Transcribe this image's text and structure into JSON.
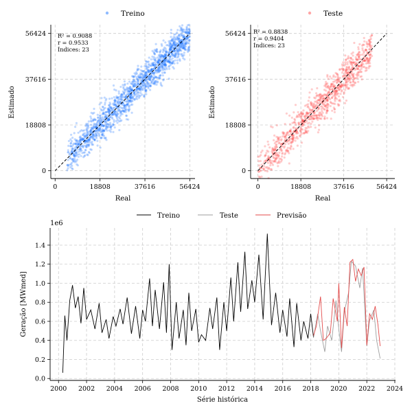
{
  "chart_data": [
    {
      "type": "scatter",
      "legend": {
        "label": "Treino",
        "placement": "top-center"
      },
      "xlabel": "Real",
      "ylabel": "Estimado",
      "xlim": [
        -1800,
        58600
      ],
      "ylim": [
        -3200,
        60000
      ],
      "ticks": [
        "0",
        "18808",
        "37616",
        "56424"
      ],
      "tick_values": [
        0,
        18808,
        37616,
        56424
      ],
      "grid": true,
      "annotation": [
        "R² = 0.9088",
        "r = 0.9533",
        "Índices: 23"
      ],
      "color": "#1f77ff",
      "cloud": {
        "x_min": 5000,
        "x_max": 56424,
        "n_points": 1600,
        "approx_slope": 1.0
      },
      "identity_line": true
    },
    {
      "type": "scatter",
      "legend": {
        "label": "Teste",
        "placement": "top-center"
      },
      "xlabel": "Real",
      "ylabel": "Estimado",
      "xlim": [
        -3200,
        60000
      ],
      "ylim": [
        -3200,
        60000
      ],
      "ticks": [
        "0",
        "18808",
        "37616",
        "56424"
      ],
      "tick_values": [
        0,
        18808,
        37616,
        56424
      ],
      "grid": true,
      "annotation": [
        "R² = 0.8838",
        "r = 0.9404",
        "Índices: 23"
      ],
      "color": "#ff4d4d",
      "cloud": {
        "x_min": 0,
        "x_max": 50000,
        "n_points": 1000,
        "approx_slope": 1.0
      },
      "identity_line": true
    },
    {
      "type": "line",
      "legend": [
        {
          "label": "Treino",
          "color": "#000000"
        },
        {
          "label": "Teste",
          "color": "#9e9e9e"
        },
        {
          "label": "Previsão",
          "color": "#e34a4a"
        }
      ],
      "xlabel": "Série histórica",
      "ylabel": "Geração [MWmed]",
      "y_offset_label": "1e6",
      "xlim": [
        1999.4,
        2024.05
      ],
      "ylim": [
        -0.02,
        1.58
      ],
      "xticks": [
        "2000",
        "2002",
        "2004",
        "2006",
        "2008",
        "2010",
        "2012",
        "2014",
        "2016",
        "2018",
        "2020",
        "2022",
        "2024"
      ],
      "xtick_values": [
        2000,
        2002,
        2004,
        2006,
        2008,
        2010,
        2012,
        2014,
        2016,
        2018,
        2020,
        2022,
        2024
      ],
      "yticks": [
        "0.0",
        "0.2",
        "0.4",
        "0.6",
        "0.8",
        "1.0",
        "1.2",
        "1.4"
      ],
      "ytick_values": [
        0,
        0.2,
        0.4,
        0.6,
        0.8,
        1.0,
        1.2,
        1.4
      ],
      "grid": true,
      "series": [
        {
          "name": "Treino",
          "color": "#000000",
          "x": [
            2000.3,
            2000.45,
            2000.6,
            2000.8,
            2001.0,
            2001.2,
            2001.4,
            2001.6,
            2001.8,
            2002.0,
            2002.3,
            2002.6,
            2002.9,
            2003.1,
            2003.4,
            2003.6,
            2003.9,
            2004.1,
            2004.4,
            2004.6,
            2004.9,
            2005.2,
            2005.5,
            2005.8,
            2006.0,
            2006.2,
            2006.5,
            2006.7,
            2006.9,
            2007.2,
            2007.5,
            2007.7,
            2007.9,
            2008.1,
            2008.4,
            2008.6,
            2008.9,
            2009.1,
            2009.3,
            2009.5,
            2009.8,
            2010.0,
            2010.2,
            2010.5,
            2010.8,
            2011.0,
            2011.3,
            2011.5,
            2011.8,
            2012.0,
            2012.3,
            2012.5,
            2012.8,
            2013.0,
            2013.3,
            2013.5,
            2013.8,
            2014.0,
            2014.3,
            2014.6,
            2014.9,
            2015.2,
            2015.5,
            2015.8,
            2016.0,
            2016.3,
            2016.5,
            2016.8,
            2017.0,
            2017.3,
            2017.5,
            2017.8,
            2018.0,
            2018.2
          ],
          "y": [
            0.06,
            0.66,
            0.4,
            0.82,
            0.98,
            0.74,
            0.86,
            0.58,
            0.95,
            0.62,
            0.72,
            0.52,
            0.79,
            0.48,
            0.62,
            0.42,
            0.65,
            0.55,
            0.73,
            0.57,
            0.85,
            0.47,
            0.76,
            0.42,
            0.72,
            0.6,
            1.05,
            0.55,
            0.93,
            0.52,
            1.01,
            0.48,
            1.2,
            0.3,
            0.8,
            0.42,
            0.72,
            0.35,
            0.9,
            0.5,
            0.73,
            0.38,
            0.46,
            0.4,
            0.74,
            0.52,
            0.85,
            0.3,
            0.8,
            0.5,
            1.06,
            0.6,
            1.22,
            0.7,
            1.33,
            0.73,
            1.03,
            0.8,
            1.3,
            0.62,
            1.52,
            0.56,
            0.9,
            0.48,
            0.72,
            0.44,
            0.84,
            0.33,
            0.79,
            0.4,
            0.6,
            0.42,
            0.68,
            0.43
          ]
        },
        {
          "name": "Teste",
          "color": "#9e9e9e",
          "x": [
            2018.2,
            2018.5,
            2018.7,
            2019.0,
            2019.2,
            2019.5,
            2019.8,
            2020.0,
            2020.2,
            2020.4,
            2020.7,
            2020.9,
            2021.2,
            2021.5,
            2021.7,
            2022.0,
            2022.2,
            2022.5,
            2022.7,
            2022.95
          ],
          "y": [
            0.43,
            0.68,
            0.5,
            0.28,
            0.55,
            0.4,
            0.82,
            0.52,
            0.28,
            0.7,
            0.9,
            1.23,
            1.18,
            0.95,
            1.16,
            0.34,
            0.61,
            0.72,
            0.4,
            0.21
          ]
        },
        {
          "name": "Previsão",
          "color": "#e34a4a",
          "x": [
            2018.2,
            2018.4,
            2018.7,
            2018.9,
            2019.1,
            2019.4,
            2019.6,
            2019.9,
            2020.0,
            2020.2,
            2020.4,
            2020.6,
            2020.8,
            2021.0,
            2021.2,
            2021.4,
            2021.6,
            2021.8,
            2022.0,
            2022.2,
            2022.4,
            2022.6,
            2022.8,
            2022.95
          ],
          "y": [
            0.45,
            0.55,
            0.86,
            0.4,
            0.42,
            0.48,
            0.84,
            0.6,
            1.0,
            0.32,
            0.75,
            0.55,
            1.22,
            1.25,
            1.02,
            1.15,
            1.08,
            1.17,
            0.35,
            0.68,
            0.62,
            0.76,
            0.56,
            0.34
          ]
        }
      ]
    }
  ]
}
